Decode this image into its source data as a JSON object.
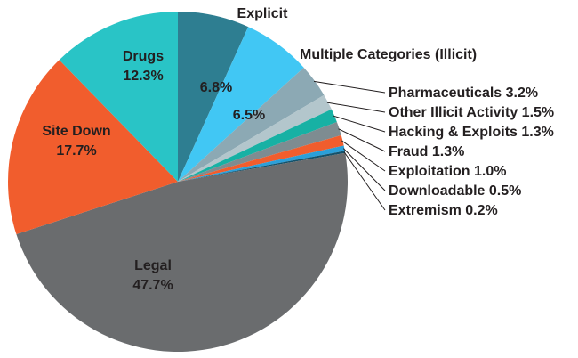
{
  "chart_data": {
    "type": "pie",
    "unit": "%",
    "direction": "clockwise",
    "start_angle_deg": 0,
    "legend_position": "none",
    "text_color": "#231F20",
    "background_color": "#FFFFFF",
    "slices": [
      {
        "label": "Explicit",
        "value": 6.8,
        "color": "#2E7E91"
      },
      {
        "label": "Multiple Categories (Illicit)",
        "value": 6.5,
        "color": "#41C7F4"
      },
      {
        "label": "Pharmaceuticals",
        "value": 3.2,
        "color": "#8CA9B4"
      },
      {
        "label": "Other Illicit Activity",
        "value": 1.5,
        "color": "#B3C6CC"
      },
      {
        "label": "Hacking & Exploits",
        "value": 1.3,
        "color": "#17B1A4"
      },
      {
        "label": "Fraud",
        "value": 1.3,
        "color": "#7E8C91"
      },
      {
        "label": "Exploitation",
        "value": 1.0,
        "color": "#F15D2D"
      },
      {
        "label": "Downloadable",
        "value": 0.5,
        "color": "#2B9FD8"
      },
      {
        "label": "Extremism",
        "value": 0.2,
        "color": "#14526B"
      },
      {
        "label": "Legal",
        "value": 47.7,
        "color": "#6A6C6E"
      },
      {
        "label": "Site Down",
        "value": 17.7,
        "color": "#F15D2D"
      },
      {
        "label": "Drugs",
        "value": 12.3,
        "color": "#29C4C6"
      }
    ]
  }
}
